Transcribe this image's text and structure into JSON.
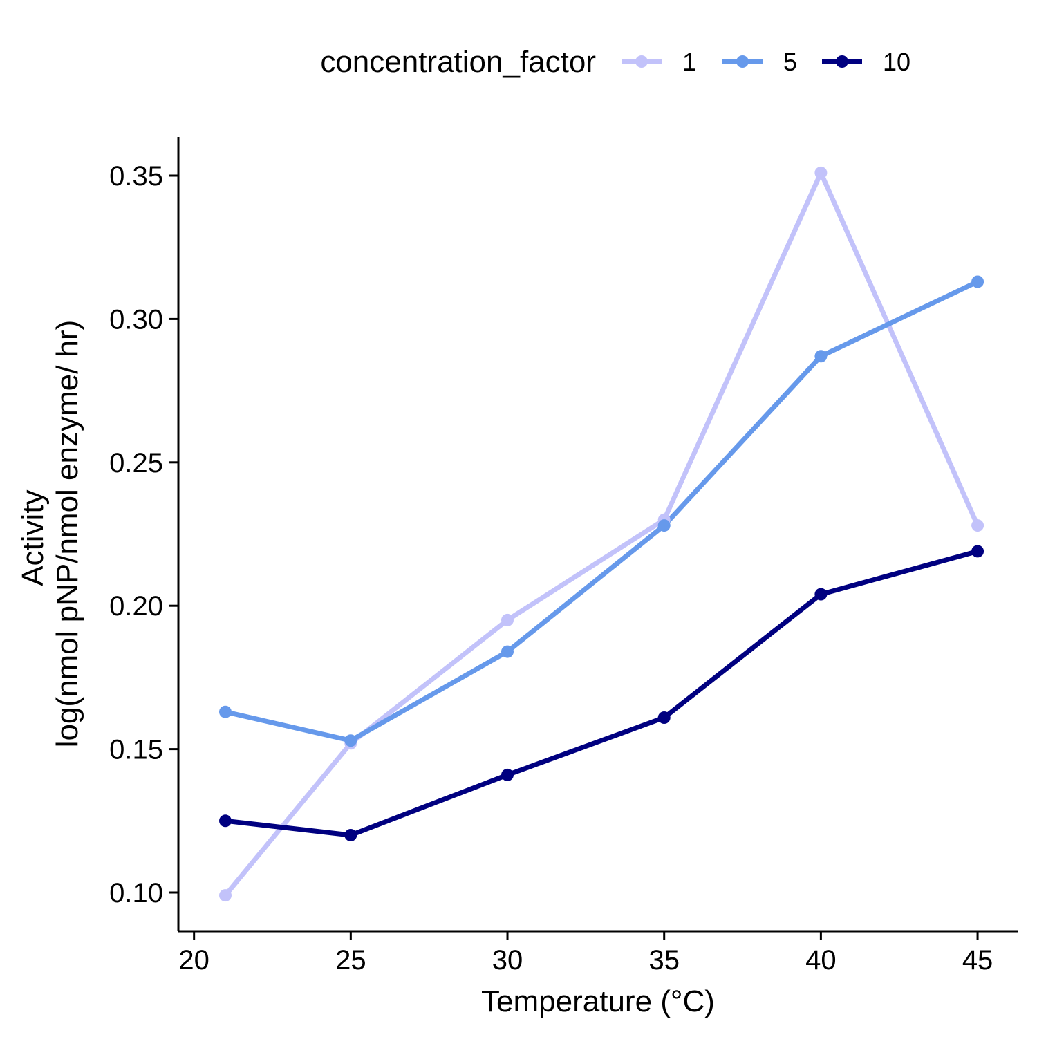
{
  "chart_data": {
    "type": "line",
    "title": "",
    "xlabel": "Temperature (°C)",
    "ylabel_lines": [
      "Activity",
      "log(nmol pNP/nmol enzyme/ hr)"
    ],
    "xlim": [
      19.5,
      46.3
    ],
    "ylim": [
      0.0865,
      0.3635
    ],
    "x_ticks": [
      20,
      25,
      30,
      35,
      40,
      45
    ],
    "x_tick_labels": [
      "20",
      "25",
      "30",
      "35",
      "40",
      "45"
    ],
    "y_ticks": [
      0.1,
      0.15,
      0.2,
      0.25,
      0.3,
      0.35
    ],
    "y_tick_labels": [
      "0.10",
      "0.15",
      "0.20",
      "0.25",
      "0.30",
      "0.35"
    ],
    "grid": false,
    "legend": {
      "title": "concentration_factor",
      "placement": "top"
    },
    "x": [
      21,
      25,
      30,
      35,
      40,
      45
    ],
    "series": [
      {
        "name": "1",
        "color": "#C2C2FA",
        "values": [
          0.099,
          0.152,
          0.195,
          0.23,
          0.351,
          0.228
        ]
      },
      {
        "name": "5",
        "color": "#6699EB",
        "values": [
          0.163,
          0.153,
          0.184,
          0.228,
          0.287,
          0.313
        ]
      },
      {
        "name": "10",
        "color": "#000080",
        "values": [
          0.125,
          0.12,
          0.141,
          0.161,
          0.204,
          0.219
        ]
      }
    ]
  }
}
